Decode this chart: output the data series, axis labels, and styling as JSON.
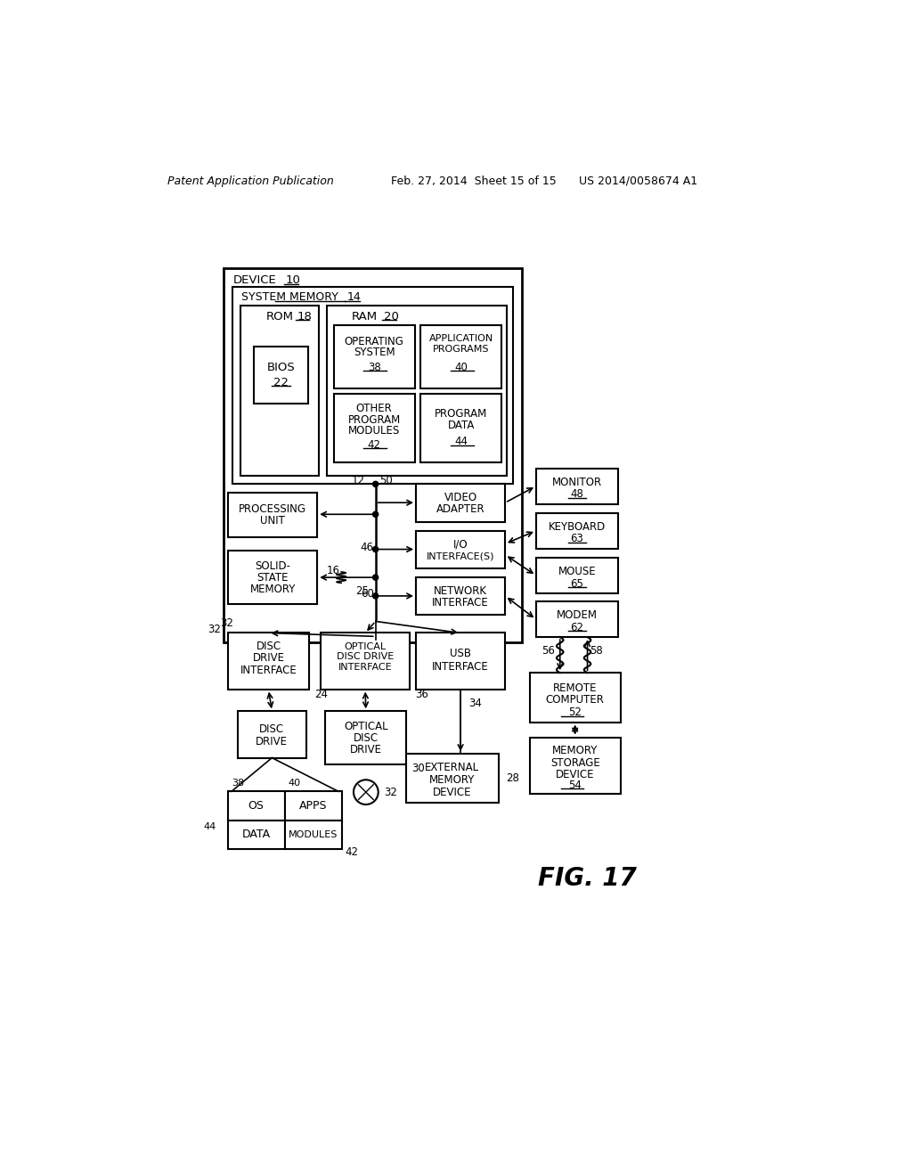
{
  "header_left": "Patent Application Publication",
  "header_mid": "Feb. 27, 2014  Sheet 15 of 15",
  "header_right": "US 2014/0058674 A1",
  "fig_label": "FIG. 17",
  "bg_color": "#ffffff"
}
